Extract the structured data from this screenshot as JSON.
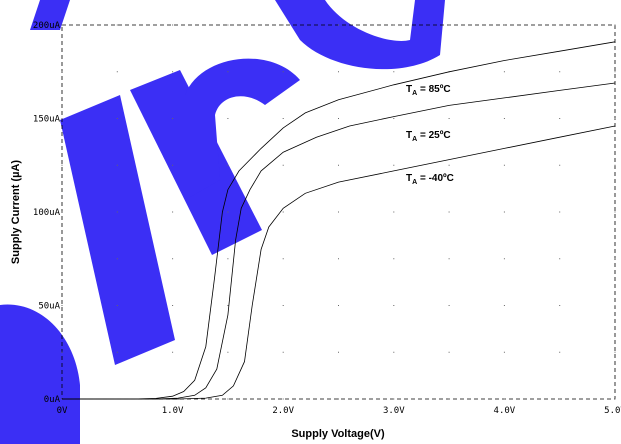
{
  "chart_data": {
    "type": "line",
    "xlabel": "Supply Voltage(V)",
    "ylabel": "Supply Current (µA)",
    "xlim": [
      0,
      5
    ],
    "ylim": [
      0,
      200
    ],
    "grid": true,
    "x_ticks": [
      "0V",
      "1.0V",
      "2.0V",
      "3.0V",
      "4.0V",
      "5.0V"
    ],
    "y_ticks": [
      "0uA",
      "50uA",
      "100uA",
      "150uA",
      "200uA"
    ],
    "series": [
      {
        "name": "T_A = 85ºC",
        "label_main": "T",
        "label_sub": "A",
        "label_rest": " = 85ºC",
        "points": [
          [
            0.0,
            0
          ],
          [
            0.65,
            0
          ],
          [
            0.85,
            0.3
          ],
          [
            1.0,
            1.5
          ],
          [
            1.1,
            4
          ],
          [
            1.2,
            10
          ],
          [
            1.3,
            28
          ],
          [
            1.38,
            65
          ],
          [
            1.45,
            100
          ],
          [
            1.5,
            112
          ],
          [
            1.6,
            122
          ],
          [
            1.8,
            134
          ],
          [
            2.0,
            145
          ],
          [
            2.2,
            153
          ],
          [
            2.5,
            160
          ],
          [
            3.0,
            168
          ],
          [
            3.5,
            175
          ],
          [
            4.0,
            181
          ],
          [
            4.5,
            186
          ],
          [
            5.0,
            191
          ]
        ]
      },
      {
        "name": "T_A = 25ºC",
        "label_main": "T",
        "label_sub": "A",
        "label_rest": " = 25ºC",
        "points": [
          [
            0.0,
            0
          ],
          [
            0.85,
            0
          ],
          [
            1.05,
            0.5
          ],
          [
            1.2,
            2
          ],
          [
            1.3,
            6
          ],
          [
            1.4,
            16
          ],
          [
            1.5,
            45
          ],
          [
            1.57,
            85
          ],
          [
            1.62,
            102
          ],
          [
            1.7,
            112
          ],
          [
            1.8,
            122
          ],
          [
            2.0,
            132
          ],
          [
            2.3,
            140
          ],
          [
            2.6,
            146
          ],
          [
            3.0,
            151
          ],
          [
            3.5,
            157
          ],
          [
            4.0,
            161
          ],
          [
            4.5,
            165
          ],
          [
            5.0,
            169
          ]
        ]
      },
      {
        "name": "T_A = -40ºC",
        "label_main": "T",
        "label_sub": "A",
        "label_rest": " = -40ºC",
        "points": [
          [
            0.0,
            0
          ],
          [
            1.05,
            0
          ],
          [
            1.3,
            0.5
          ],
          [
            1.45,
            2
          ],
          [
            1.55,
            7
          ],
          [
            1.65,
            20
          ],
          [
            1.72,
            50
          ],
          [
            1.8,
            80
          ],
          [
            1.87,
            92
          ],
          [
            2.0,
            102
          ],
          [
            2.2,
            110
          ],
          [
            2.5,
            116
          ],
          [
            3.0,
            122
          ],
          [
            3.5,
            128
          ],
          [
            4.0,
            134
          ],
          [
            4.5,
            140
          ],
          [
            5.0,
            146
          ]
        ]
      }
    ]
  }
}
